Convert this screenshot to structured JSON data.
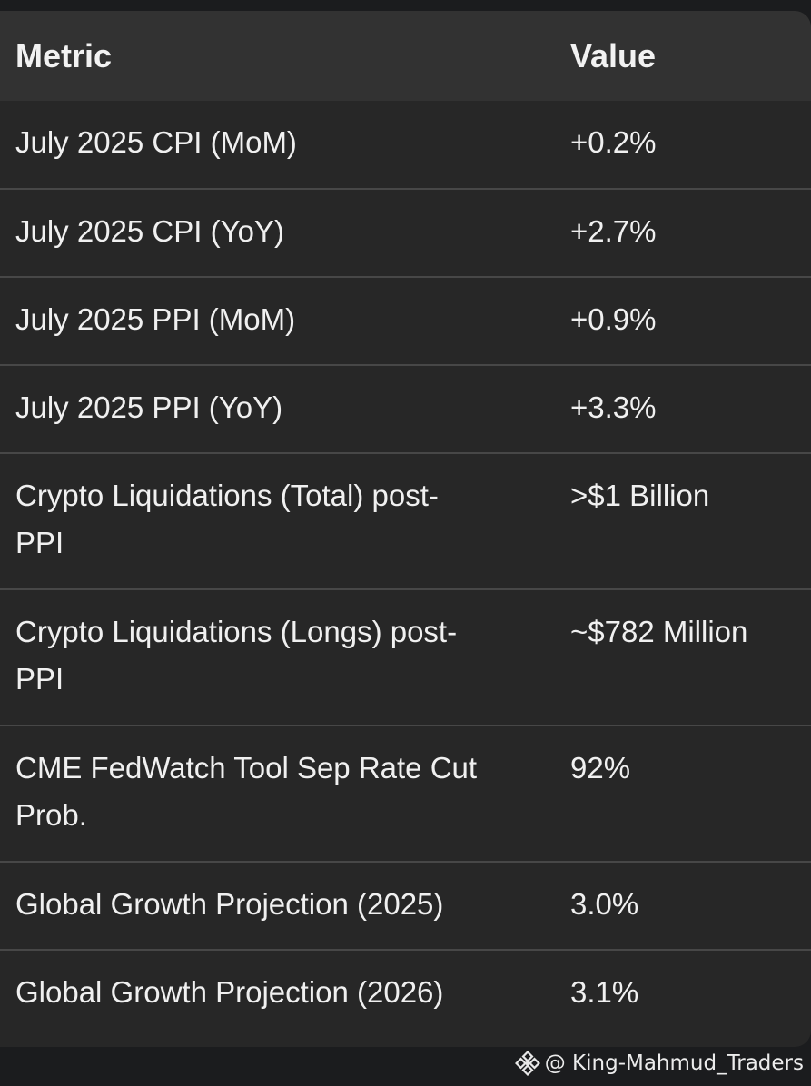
{
  "table": {
    "headers": {
      "metric": "Metric",
      "value": "Value"
    },
    "rows": [
      {
        "metric": "July 2025 CPI (MoM)",
        "value": "+0.2%"
      },
      {
        "metric": "July 2025 CPI (YoY)",
        "value": "+2.7%"
      },
      {
        "metric": "July 2025 PPI (MoM)",
        "value": "+0.9%"
      },
      {
        "metric": "July 2025 PPI (YoY)",
        "value": "+3.3%"
      },
      {
        "metric": "Crypto Liquidations (Total) post-PPI",
        "value": ">$1 Billion"
      },
      {
        "metric": "Crypto Liquidations (Longs) post-PPI",
        "value": "~$782 Million"
      },
      {
        "metric": "CME FedWatch Tool Sep Rate Cut Prob.",
        "value": "92%"
      },
      {
        "metric": "Global Growth Projection (2025)",
        "value": "3.0%"
      },
      {
        "metric": "Global Growth Projection (2026)",
        "value": "3.1%"
      }
    ]
  },
  "watermark": {
    "icon": "binance-logo-icon",
    "text": "@ King-Mahmud_Traders"
  },
  "colors": {
    "background": "#1b1c1e",
    "table_body": "#272727",
    "header_row": "#323232",
    "divider": "#474747",
    "text": "#f2f2f2"
  }
}
